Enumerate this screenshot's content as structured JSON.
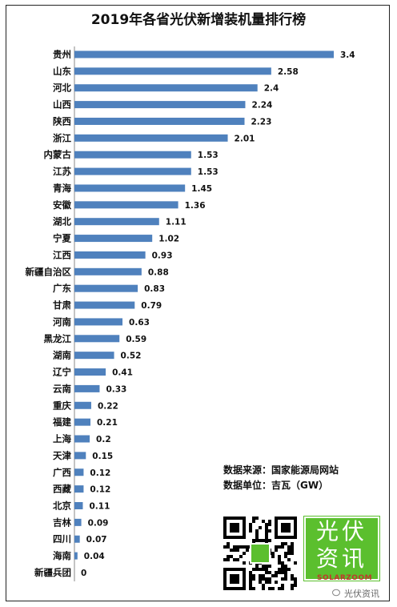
{
  "title": "2019年各省光伏新增装机量排行榜",
  "chart_data": {
    "type": "bar",
    "orientation": "horizontal",
    "title": "2019年各省光伏新增装机量排行榜",
    "categories": [
      "贵州",
      "山东",
      "河北",
      "山西",
      "陕西",
      "浙江",
      "内蒙古",
      "江苏",
      "青海",
      "安徽",
      "湖北",
      "宁夏",
      "江西",
      "新疆自治区",
      "广东",
      "甘肃",
      "河南",
      "黑龙江",
      "湖南",
      "辽宁",
      "云南",
      "重庆",
      "福建",
      "上海",
      "天津",
      "广西",
      "西藏",
      "北京",
      "吉林",
      "四川",
      "海南",
      "新疆兵团"
    ],
    "values": [
      3.4,
      2.58,
      2.4,
      2.24,
      2.23,
      2.01,
      1.53,
      1.53,
      1.45,
      1.36,
      1.11,
      1.02,
      0.93,
      0.88,
      0.83,
      0.79,
      0.63,
      0.59,
      0.52,
      0.41,
      0.33,
      0.22,
      0.21,
      0.2,
      0.15,
      0.12,
      0.12,
      0.11,
      0.09,
      0.07,
      0.04,
      0
    ],
    "value_labels": [
      "3.4",
      "2.58",
      "2.4",
      "2.24",
      "2.23",
      "2.01",
      "1.53",
      "1.53",
      "1.45",
      "1.36",
      "1.11",
      "1.02",
      "0.93",
      "0.88",
      "0.83",
      "0.79",
      "0.63",
      "0.59",
      "0.52",
      "0.41",
      "0.33",
      "0.22",
      "0.21",
      "0.2",
      "0.15",
      "0.12",
      "0.12",
      "0.11",
      "0.09",
      "0.07",
      "0.04",
      "0"
    ],
    "bar_color": "#4f81bd",
    "xlim": [
      0,
      3.4
    ],
    "grid": false,
    "legend": "none"
  },
  "source": {
    "line1": "数据来源：国家能源局网站",
    "line2": "数据单位：吉瓦（GW）"
  },
  "logo": {
    "line1": "光伏",
    "line2": "资讯",
    "site": "SOLARZOOM",
    "color": "#5bbf2e"
  },
  "watermark": "光伏资讯"
}
